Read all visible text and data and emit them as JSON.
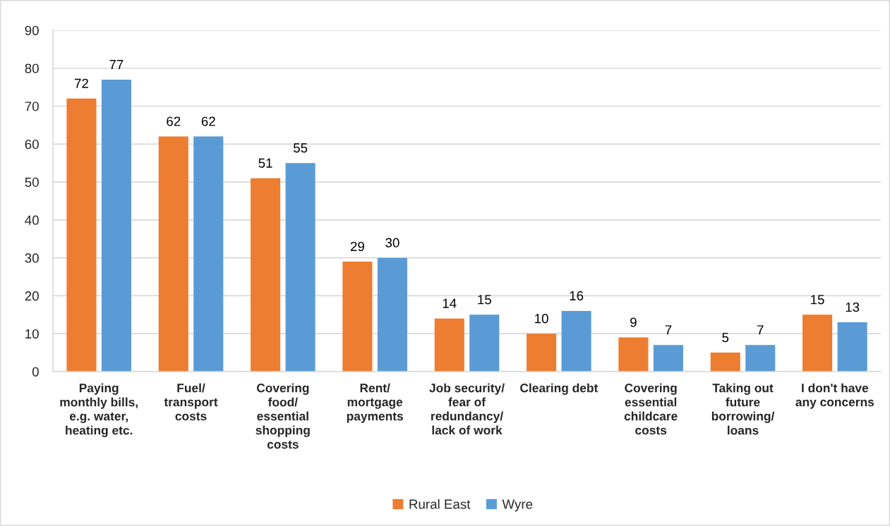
{
  "chart_data": {
    "type": "bar",
    "categories": [
      "Paying\nmonthly bills,\ne.g. water,\nheating etc.",
      "Fuel/\ntransport\ncosts",
      "Covering\nfood/\nessential\nshopping\ncosts",
      "Rent/\nmortgage\npayments",
      "Job security/\nfear of\nredundancy/\nlack of work",
      "Clearing debt",
      "Covering\nessential\nchildcare\ncosts",
      "Taking out\nfuture\nborrowing/\nloans",
      "I don't have\nany concerns"
    ],
    "series": [
      {
        "name": "Rural East",
        "color": "#ed7d31",
        "values": [
          72,
          62,
          51,
          29,
          14,
          10,
          9,
          5,
          15
        ]
      },
      {
        "name": "Wyre",
        "color": "#5b9bd5",
        "values": [
          77,
          62,
          55,
          30,
          15,
          16,
          7,
          7,
          13
        ]
      }
    ],
    "ylim": [
      0,
      90
    ],
    "yticks": [
      0,
      10,
      20,
      30,
      40,
      50,
      60,
      70,
      80,
      90
    ],
    "grid": "y",
    "legend": "bottom",
    "data_labels": true
  }
}
